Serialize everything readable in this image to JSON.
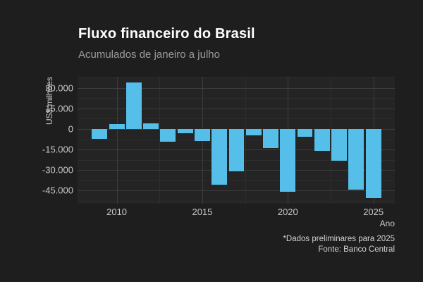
{
  "colors": {
    "page_background": "#1e1e1e",
    "panel_background": "#242424",
    "grid_major": "#3c3c3c",
    "grid_minor": "#2d2d2d",
    "bar_fill": "#55bee9",
    "title_text": "#ffffff",
    "subtitle_text": "#9a9a9a",
    "axis_text": "#c9c9c9"
  },
  "chart_data": {
    "type": "bar",
    "title": "Fluxo financeiro do Brasil",
    "subtitle": "Acumulados de janeiro a julho",
    "xlabel": "Ano",
    "ylabel": "US$ milhões",
    "caption": [
      "*Dados preliminares para 2025",
      "Fonte: Banco Central"
    ],
    "categories": [
      2009,
      2010,
      2011,
      2012,
      2013,
      2014,
      2015,
      2016,
      2017,
      2018,
      2019,
      2020,
      2021,
      2022,
      2023,
      2024,
      2025
    ],
    "values": [
      -7200,
      3400,
      34000,
      4100,
      -9300,
      -3000,
      -9000,
      -40600,
      -31200,
      -4600,
      -13700,
      -46200,
      -5500,
      -15900,
      -23400,
      -44500,
      -50400
    ],
    "bar_color": "#55bee9",
    "bar_width_years": 0.9,
    "xlim": [
      2007.71,
      2026.25
    ],
    "ylim": [
      -54725,
      38225
    ],
    "grid": true,
    "legend": false,
    "x_ticks": {
      "values": [
        2010,
        2015,
        2020,
        2025
      ],
      "labels": [
        "2010",
        "2015",
        "2020",
        "2025"
      ]
    },
    "y_ticks": {
      "values": [
        30000,
        15000,
        0,
        -15000,
        -30000,
        -45000
      ],
      "labels": [
        "30.000",
        "15.000",
        "0",
        "-15.000",
        "-30.000",
        "-45.000"
      ]
    },
    "x_minor_gridlines": [
      2012.5,
      2017.5,
      2022.5
    ],
    "y_minor_gridlines": [
      37500,
      22500,
      7500,
      -7500,
      -22500,
      -37500,
      -52500
    ]
  }
}
